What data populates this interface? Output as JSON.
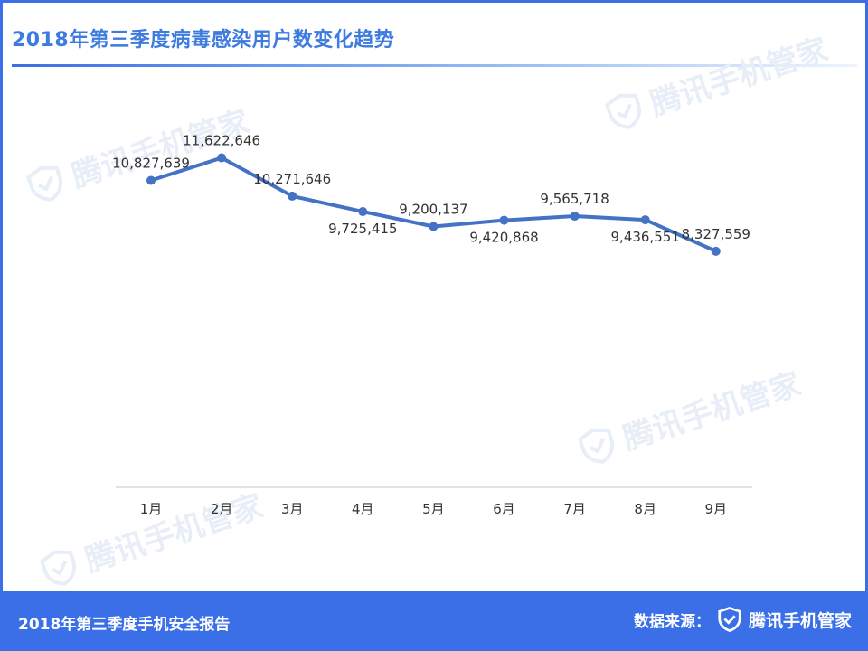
{
  "header": {
    "title": "2018年第三季度病毒感染用户数变化趋势"
  },
  "watermark": {
    "text": "腾讯手机管家",
    "icon": "shield-check-icon"
  },
  "footer": {
    "report_title": "2018年第三季度手机安全报告",
    "source_label": "数据来源：",
    "brand": "腾讯手机管家",
    "brand_icon": "shield-check-icon"
  },
  "colors": {
    "frame": "#3a6fe8",
    "title": "#3d7be0",
    "line": "#4472c4"
  },
  "chart_data": {
    "type": "line",
    "categories": [
      "1月",
      "2月",
      "3月",
      "4月",
      "5月",
      "6月",
      "7月",
      "8月",
      "9月"
    ],
    "values": [
      10827639,
      11622646,
      10271646,
      9725415,
      9200137,
      9420868,
      9565718,
      9436551,
      8327559
    ],
    "data_labels": [
      "10,827,639",
      "11,622,646",
      "10,271,646",
      "9,725,415",
      "9,200,137",
      "9,420,868",
      "9,565,718",
      "9,436,551",
      "8,327,559"
    ],
    "label_positions": [
      "above",
      "above",
      "above",
      "below",
      "above",
      "below",
      "above",
      "below",
      "above"
    ],
    "title": "2018年第三季度病毒感染用户数变化趋势",
    "xlabel": "",
    "ylabel": "",
    "ylim": [
      0,
      14000000
    ],
    "grid": false,
    "legend": "none",
    "markers": true
  }
}
